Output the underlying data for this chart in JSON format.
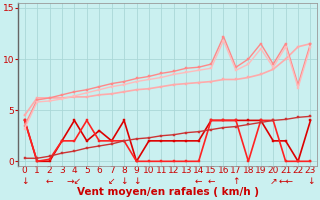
{
  "bg_color": "#caf0f0",
  "grid_color": "#aad8d8",
  "xlabel": "Vent moyen/en rafales ( km/h )",
  "xlim_min": -0.5,
  "xlim_max": 23.5,
  "ylim_min": -0.5,
  "ylim_max": 15.5,
  "yticks": [
    0,
    5,
    10,
    15
  ],
  "xticks": [
    0,
    1,
    2,
    3,
    4,
    5,
    6,
    7,
    8,
    9,
    10,
    11,
    12,
    13,
    14,
    15,
    16,
    17,
    18,
    19,
    20,
    21,
    22,
    23
  ],
  "wind_arrows": [
    "↓",
    "",
    "←",
    "",
    "→↙",
    "",
    "",
    "↙",
    "↓",
    "↓",
    "",
    "",
    "",
    "",
    "←",
    "←",
    "",
    "↑",
    "",
    "",
    "↗",
    "←←",
    "",
    "↓"
  ],
  "lines": [
    {
      "x": [
        0,
        1,
        2,
        3,
        4,
        5,
        6,
        7,
        8,
        9,
        10,
        11,
        12,
        13,
        14,
        15,
        16,
        17,
        18,
        19,
        20,
        21,
        22,
        23
      ],
      "y": [
        4.0,
        0.0,
        0.0,
        2.0,
        4.0,
        2.0,
        3.0,
        2.0,
        4.0,
        0.0,
        2.0,
        2.0,
        2.0,
        2.0,
        2.0,
        4.0,
        4.0,
        4.0,
        4.0,
        4.0,
        2.0,
        2.0,
        0.0,
        4.0
      ],
      "color": "#dd0000",
      "lw": 1.2,
      "marker": "s"
    },
    {
      "x": [
        0,
        1,
        2,
        3,
        4,
        5,
        6,
        7,
        8,
        9,
        10,
        11,
        12,
        13,
        14,
        15,
        16,
        17,
        18,
        19,
        20,
        21,
        22,
        23
      ],
      "y": [
        4.0,
        0.0,
        0.2,
        2.0,
        2.0,
        4.0,
        2.0,
        2.0,
        2.0,
        0.0,
        0.0,
        0.0,
        0.0,
        0.0,
        0.0,
        4.0,
        4.0,
        4.0,
        0.0,
        4.0,
        4.0,
        0.0,
        0.0,
        0.0
      ],
      "color": "#ff2222",
      "lw": 1.2,
      "marker": "s"
    },
    {
      "x": [
        0,
        1,
        2,
        3,
        4,
        5,
        6,
        7,
        8,
        9,
        10,
        11,
        12,
        13,
        14,
        15,
        16,
        17,
        18,
        19,
        20,
        21,
        22,
        23
      ],
      "y": [
        0.3,
        0.3,
        0.5,
        0.8,
        1.0,
        1.3,
        1.5,
        1.7,
        2.0,
        2.2,
        2.3,
        2.5,
        2.6,
        2.8,
        2.9,
        3.1,
        3.3,
        3.4,
        3.6,
        3.8,
        4.0,
        4.1,
        4.3,
        4.4
      ],
      "color": "#cc3333",
      "lw": 1.0,
      "marker": "s"
    },
    {
      "x": [
        0,
        1,
        2,
        3,
        4,
        5,
        6,
        7,
        8,
        9,
        10,
        11,
        12,
        13,
        14,
        15,
        16,
        17,
        18,
        19,
        20,
        21,
        22,
        23
      ],
      "y": [
        4.5,
        6.2,
        6.2,
        6.2,
        6.3,
        6.3,
        6.5,
        6.6,
        6.8,
        7.0,
        7.1,
        7.3,
        7.5,
        7.6,
        7.7,
        7.8,
        8.0,
        8.0,
        8.2,
        8.5,
        9.0,
        10.0,
        11.2,
        11.5
      ],
      "color": "#ffaaaa",
      "lw": 1.2,
      "marker": "s"
    },
    {
      "x": [
        0,
        1,
        2,
        3,
        4,
        5,
        6,
        7,
        8,
        9,
        10,
        11,
        12,
        13,
        14,
        15,
        16,
        17,
        18,
        19,
        20,
        21,
        22,
        23
      ],
      "y": [
        3.5,
        6.0,
        6.2,
        6.5,
        6.8,
        7.0,
        7.3,
        7.6,
        7.8,
        8.1,
        8.3,
        8.6,
        8.8,
        9.1,
        9.2,
        9.5,
        12.2,
        9.2,
        10.0,
        11.5,
        9.5,
        11.5,
        7.5,
        11.5
      ],
      "color": "#ff8888",
      "lw": 1.0,
      "marker": "s"
    },
    {
      "x": [
        0,
        1,
        2,
        3,
        4,
        5,
        6,
        7,
        8,
        9,
        10,
        11,
        12,
        13,
        14,
        15,
        16,
        17,
        18,
        19,
        20,
        21,
        22,
        23
      ],
      "y": [
        3.2,
        5.8,
        5.9,
        6.1,
        6.4,
        6.7,
        7.0,
        7.3,
        7.5,
        7.8,
        8.0,
        8.2,
        8.5,
        8.7,
        8.9,
        9.1,
        11.8,
        8.9,
        9.5,
        11.0,
        9.2,
        11.2,
        7.2,
        11.2
      ],
      "color": "#ffbbbb",
      "lw": 1.0,
      "marker": "s"
    }
  ],
  "tick_fontsize": 6.5,
  "xlabel_fontsize": 7.5,
  "marker_size": 2.0
}
